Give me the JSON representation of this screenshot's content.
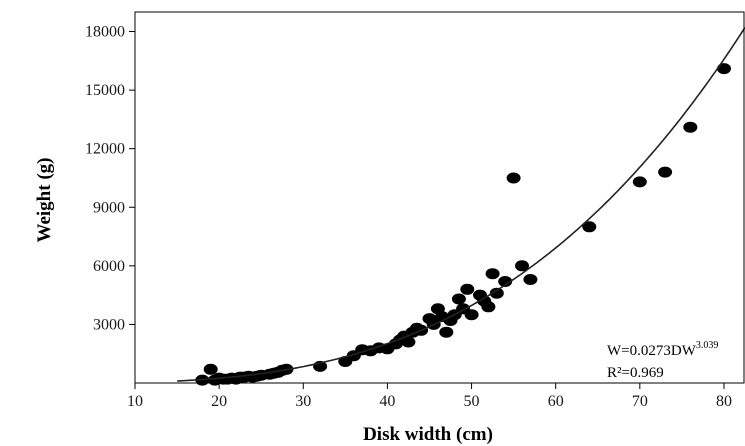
{
  "chart_data": {
    "type": "scatter",
    "xlabel": "Disk width (cm)",
    "ylabel": "Weight (g)",
    "xlim": [
      10,
      82.5
    ],
    "ylim": [
      0,
      19000
    ],
    "x_ticks": [
      10,
      20,
      30,
      40,
      50,
      60,
      70,
      80
    ],
    "y_ticks": [
      3000,
      6000,
      9000,
      12000,
      15000,
      18000
    ],
    "x_tick_labels": [
      "10",
      "20",
      "30",
      "40",
      "50",
      "60",
      "70",
      "80"
    ],
    "y_tick_labels": [
      "3000",
      "6000",
      "9000",
      "12000",
      "15000",
      "18000"
    ],
    "grid": false,
    "fit": {
      "equation": "W=0.0273DW",
      "exponent": "3.039",
      "r2": "R²=0.969",
      "a": 0.0273,
      "b": 3.039
    },
    "points": [
      [
        18,
        150
      ],
      [
        19,
        700
      ],
      [
        19.5,
        150
      ],
      [
        20,
        250
      ],
      [
        20.5,
        200
      ],
      [
        21,
        200
      ],
      [
        21.5,
        250
      ],
      [
        22,
        200
      ],
      [
        22.5,
        300
      ],
      [
        23,
        300
      ],
      [
        23.5,
        350
      ],
      [
        24,
        300
      ],
      [
        24.5,
        350
      ],
      [
        25,
        400
      ],
      [
        26,
        450
      ],
      [
        26.5,
        500
      ],
      [
        27,
        550
      ],
      [
        27.5,
        650
      ],
      [
        28,
        700
      ],
      [
        32,
        850
      ],
      [
        35,
        1100
      ],
      [
        36,
        1400
      ],
      [
        37,
        1700
      ],
      [
        38,
        1650
      ],
      [
        39,
        1800
      ],
      [
        40,
        1750
      ],
      [
        41,
        2000
      ],
      [
        41.5,
        2200
      ],
      [
        42,
        2400
      ],
      [
        42.5,
        2100
      ],
      [
        43,
        2600
      ],
      [
        43.5,
        2800
      ],
      [
        44,
        2700
      ],
      [
        45,
        3300
      ],
      [
        45.5,
        3000
      ],
      [
        46,
        3800
      ],
      [
        46.5,
        3400
      ],
      [
        47,
        2600
      ],
      [
        47.5,
        3200
      ],
      [
        48,
        3500
      ],
      [
        48.5,
        4300
      ],
      [
        49,
        3800
      ],
      [
        49.5,
        4800
      ],
      [
        50,
        3500
      ],
      [
        51,
        4500
      ],
      [
        51.5,
        4200
      ],
      [
        52,
        3900
      ],
      [
        52.5,
        5600
      ],
      [
        53,
        4600
      ],
      [
        54,
        5200
      ],
      [
        55,
        10500
      ],
      [
        56,
        6000
      ],
      [
        57,
        5300
      ],
      [
        64,
        8000
      ],
      [
        70,
        10300
      ],
      [
        73,
        10800
      ],
      [
        76,
        13100
      ],
      [
        80,
        16100
      ]
    ]
  }
}
